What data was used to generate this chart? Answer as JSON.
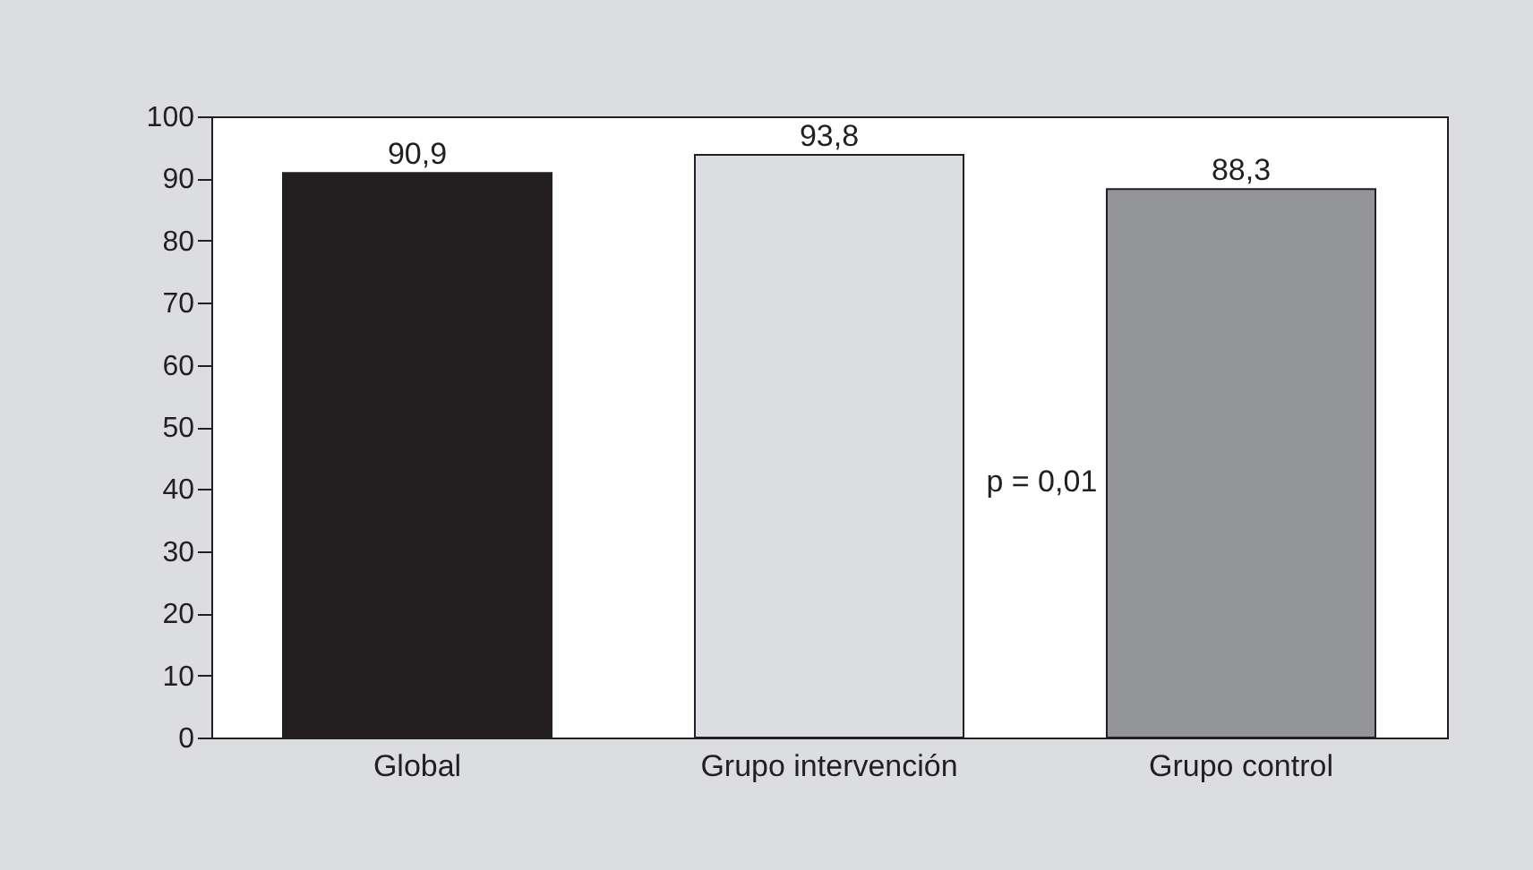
{
  "chart_data": {
    "type": "bar",
    "categories": [
      "Global",
      "Grupo intervención",
      "Grupo control"
    ],
    "values": [
      90.9,
      93.8,
      88.3
    ],
    "colors": [
      "#231f20",
      "#dcdde0",
      "#939598"
    ],
    "value_labels": [
      "90,9",
      "93,8",
      "88,3"
    ],
    "ylim": [
      0,
      100
    ],
    "yticks": [
      0,
      10,
      20,
      30,
      40,
      50,
      60,
      70,
      80,
      90,
      100
    ],
    "grid": false,
    "annotations": [
      "p = 0,01"
    ]
  }
}
